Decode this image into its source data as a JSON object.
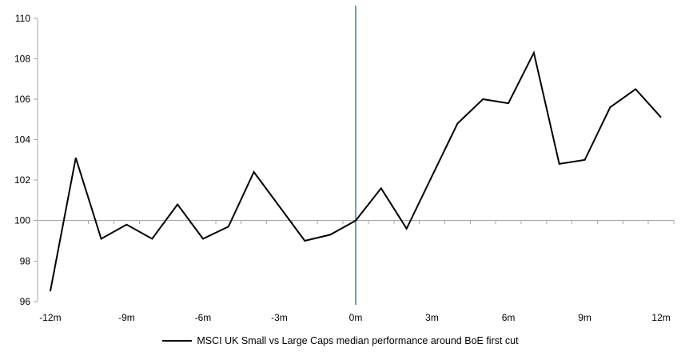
{
  "background_color": "#ffffff",
  "chart_data": {
    "type": "line",
    "title": "",
    "xlabel": "",
    "ylabel": "",
    "x": [
      -12,
      -11,
      -10,
      -9,
      -8,
      -7,
      -6,
      -5,
      -4,
      -3,
      -2,
      -1,
      0,
      1,
      2,
      3,
      4,
      5,
      6,
      7,
      8,
      9,
      10,
      11,
      12
    ],
    "series": [
      {
        "name": "MSCI UK Small vs Large Caps median performance around BoE first cut",
        "color": "#000000",
        "values": [
          96.5,
          103.1,
          99.1,
          99.8,
          99.1,
          100.8,
          99.1,
          99.7,
          102.4,
          100.7,
          99.0,
          99.3,
          100.0,
          101.6,
          99.6,
          102.2,
          104.8,
          106.0,
          105.8,
          108.3,
          102.8,
          103.0,
          105.6,
          106.5,
          105.1
        ]
      }
    ],
    "x_ticks": [
      {
        "month": -12,
        "label": "-12m"
      },
      {
        "month": -9,
        "label": "-9m"
      },
      {
        "month": -6,
        "label": "-6m"
      },
      {
        "month": -3,
        "label": "-3m"
      },
      {
        "month": 0,
        "label": "0m"
      },
      {
        "month": 3,
        "label": "3m"
      },
      {
        "month": 6,
        "label": "6m"
      },
      {
        "month": 9,
        "label": "9m"
      },
      {
        "month": 12,
        "label": "12m"
      }
    ],
    "y_ticks": [
      96,
      98,
      100,
      102,
      104,
      106,
      108,
      110
    ],
    "ylim": [
      96,
      110
    ],
    "baseline_value": 100,
    "minor_tick_every_month": true,
    "grid": "baseline-only",
    "axis_color": "#a6a6a6",
    "event_line": {
      "at_month": 0,
      "color": "#4a7ebb"
    },
    "legend_position": "bottom-center"
  }
}
